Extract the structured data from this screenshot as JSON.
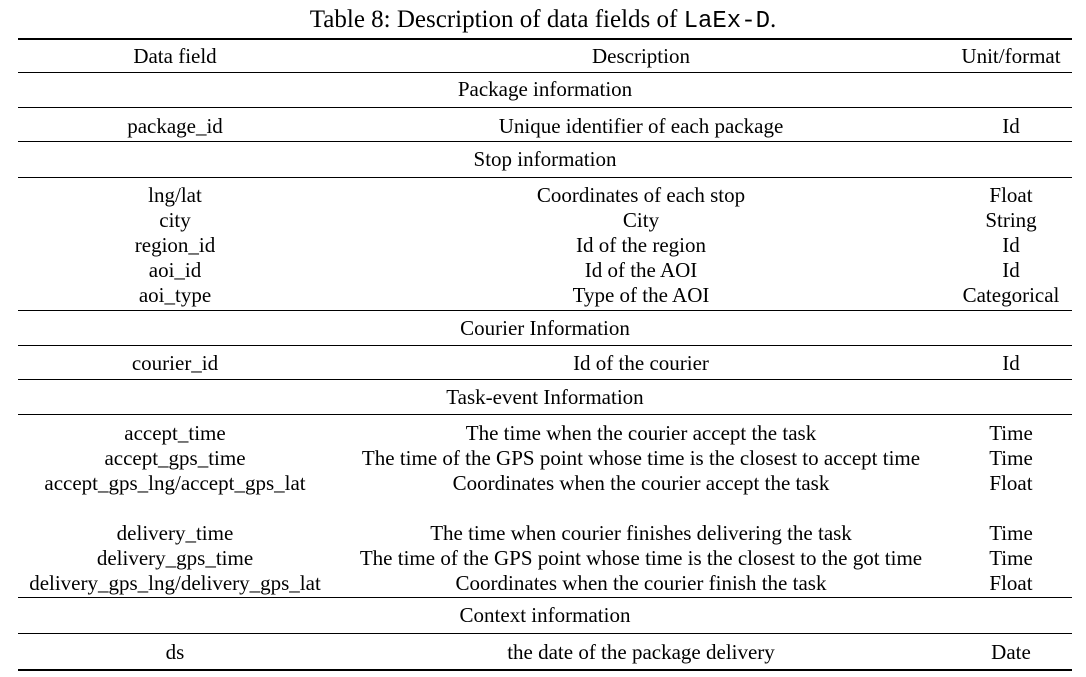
{
  "caption": {
    "prefix": "Table 8: Description of data fields of ",
    "dataset": "LaEx-D",
    "suffix": "."
  },
  "headers": {
    "field": "Data field",
    "description": "Description",
    "unit": "Unit/format"
  },
  "sections": [
    {
      "title": "Package information",
      "rows": [
        {
          "field": "package_id",
          "description": "Unique identifier of each package",
          "unit": "Id"
        }
      ]
    },
    {
      "title": "Stop information",
      "rows": [
        {
          "field": "lng/lat",
          "description": "Coordinates of each stop",
          "unit": "Float"
        },
        {
          "field": "city",
          "description": "City",
          "unit": "String"
        },
        {
          "field": "region_id",
          "description": "Id of the region",
          "unit": "Id"
        },
        {
          "field": "aoi_id",
          "description": "Id of the AOI",
          "unit": "Id"
        },
        {
          "field": "aoi_type",
          "description": "Type of the AOI",
          "unit": "Categorical"
        }
      ]
    },
    {
      "title": "Courier Information",
      "rows": [
        {
          "field": "courier_id",
          "description": "Id of the courier",
          "unit": "Id"
        }
      ]
    },
    {
      "title": "Task-event Information",
      "rows": [
        {
          "field": "accept_time",
          "description": "The time when the courier accept the task",
          "unit": "Time"
        },
        {
          "field": "accept_gps_time",
          "description": "The time of the GPS point whose time is the closest to accept time",
          "unit": "Time"
        },
        {
          "field": "accept_gps_lng/accept_gps_lat",
          "description": "Coordinates when the courier accept the task",
          "unit": "Float"
        },
        {
          "field": "delivery_time",
          "description": "The time when courier finishes delivering the task",
          "unit": "Time"
        },
        {
          "field": "delivery_gps_time",
          "description": "The time of the GPS point whose time is the closest to the got time",
          "unit": "Time"
        },
        {
          "field": "delivery_gps_lng/delivery_gps_lat",
          "description": "Coordinates when the courier finish the task",
          "unit": "Float"
        }
      ]
    },
    {
      "title": "Context information",
      "rows": [
        {
          "field": "ds",
          "description": "the date of the package delivery",
          "unit": "Date"
        }
      ]
    }
  ]
}
